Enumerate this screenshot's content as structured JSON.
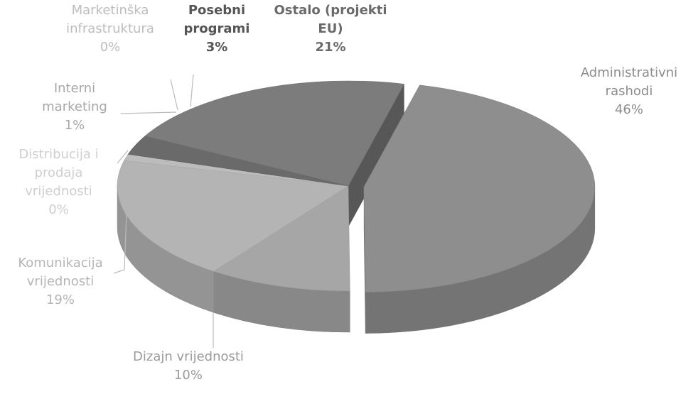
{
  "chart_data": {
    "type": "pie3d",
    "categories": [
      "Administrativni rashodi",
      "Dizajn vrijednosti",
      "Komunikacija vrijednosti",
      "Distribucija i prodaja vrijednosti",
      "Interni marketing",
      "Marketinška infrastruktura",
      "Posebni programi",
      "Ostalo (projekti EU)"
    ],
    "values": [
      46,
      10,
      19,
      0,
      1,
      0,
      3,
      21
    ],
    "value_labels": [
      "46%",
      "10%",
      "19%",
      "0%",
      "1%",
      "0%",
      "3%",
      "21%"
    ],
    "colors": [
      "#8e8e8e",
      "#a6a6a6",
      "#b4b4b4",
      "#c9c9c9",
      "#bcbcbc",
      "#b0b0b0",
      "#6a6a6a",
      "#7c7c7c"
    ]
  }
}
